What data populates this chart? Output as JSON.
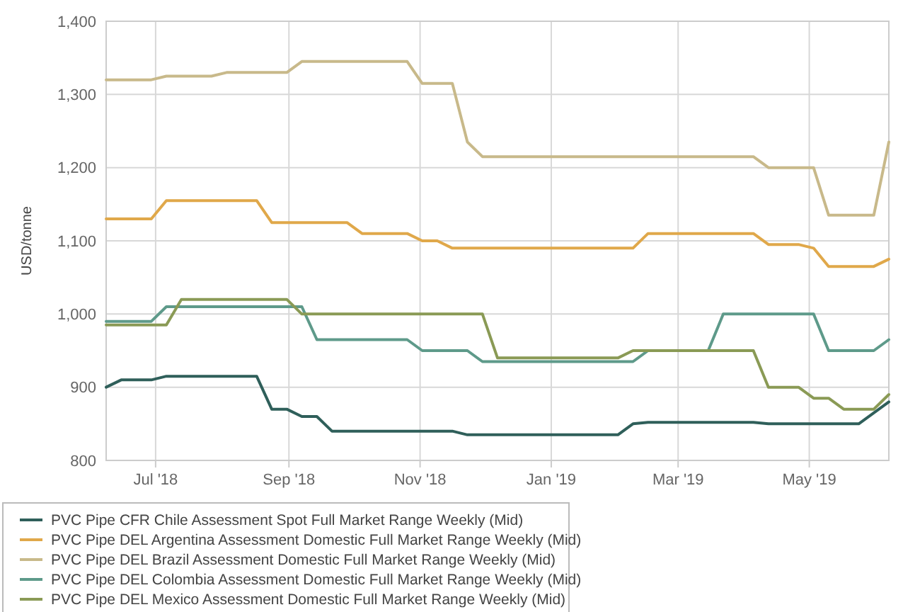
{
  "chart_data": {
    "type": "line",
    "ylabel": "USD/tonne",
    "xlim": [
      "2018-06-08",
      "2019-06-07"
    ],
    "xticks": [
      {
        "value": "2018-07-01",
        "label": "Jul '18"
      },
      {
        "value": "2018-09-01",
        "label": "Sep '18"
      },
      {
        "value": "2018-11-01",
        "label": "Nov '18"
      },
      {
        "value": "2019-01-01",
        "label": "Jan '19"
      },
      {
        "value": "2019-03-01",
        "label": "Mar '19"
      },
      {
        "value": "2019-05-01",
        "label": "May '19"
      }
    ],
    "ylim": [
      800,
      1400
    ],
    "yticks": [
      800,
      900,
      {
        "value": 1000,
        "label": "1,000"
      },
      {
        "value": 1100,
        "label": "1,100"
      },
      {
        "value": 1200,
        "label": "1,200"
      },
      {
        "value": 1300,
        "label": "1,300"
      },
      {
        "value": 1400,
        "label": "1,400"
      }
    ],
    "grid": true,
    "legend": "bottom",
    "marker": "none",
    "line_style": "solid",
    "series": [
      {
        "name": "PVC Pipe CFR Chile Assessment Spot Full Market Range Weekly (Mid)",
        "color": "#2f5f5a",
        "x": [
          "2018-06-08",
          "2018-06-15",
          "2018-06-29",
          "2018-07-06",
          "2018-08-17",
          "2018-08-24",
          "2018-08-31",
          "2018-09-07",
          "2018-09-14",
          "2018-09-21",
          "2018-11-16",
          "2018-11-23",
          "2019-02-01",
          "2019-02-08",
          "2019-02-15",
          "2019-04-05",
          "2019-04-12",
          "2019-05-24",
          "2019-06-07"
        ],
        "values": [
          900,
          910,
          910,
          915,
          915,
          870,
          870,
          860,
          860,
          840,
          840,
          835,
          835,
          850,
          852,
          852,
          850,
          850,
          880
        ]
      },
      {
        "name": "PVC Pipe DEL Argentina Assessment Domestic Full Market Range Weekly (Mid)",
        "color": "#e0a84a",
        "x": [
          "2018-06-08",
          "2018-06-29",
          "2018-07-06",
          "2018-08-17",
          "2018-08-24",
          "2018-09-28",
          "2018-10-05",
          "2018-10-26",
          "2018-11-02",
          "2018-11-09",
          "2018-11-16",
          "2019-02-08",
          "2019-02-15",
          "2019-04-05",
          "2019-04-12",
          "2019-04-26",
          "2019-05-03",
          "2019-05-10",
          "2019-05-31",
          "2019-06-07"
        ],
        "values": [
          1130,
          1130,
          1155,
          1155,
          1125,
          1125,
          1110,
          1110,
          1100,
          1100,
          1090,
          1090,
          1110,
          1110,
          1095,
          1095,
          1090,
          1065,
          1065,
          1075
        ]
      },
      {
        "name": "PVC Pipe DEL Brazil Assessment Domestic Full Market Range Weekly (Mid)",
        "color": "#c8b98a",
        "x": [
          "2018-06-08",
          "2018-06-29",
          "2018-07-06",
          "2018-07-27",
          "2018-08-03",
          "2018-08-31",
          "2018-09-07",
          "2018-10-26",
          "2018-11-02",
          "2018-11-16",
          "2018-11-23",
          "2018-11-30",
          "2019-04-05",
          "2019-04-12",
          "2019-05-03",
          "2019-05-10",
          "2019-05-31",
          "2019-06-07"
        ],
        "values": [
          1320,
          1320,
          1325,
          1325,
          1330,
          1330,
          1345,
          1345,
          1315,
          1315,
          1235,
          1215,
          1215,
          1200,
          1200,
          1135,
          1135,
          1235
        ]
      },
      {
        "name": "PVC Pipe DEL Colombia Assessment Domestic Full Market Range Weekly (Mid)",
        "color": "#5e9a8a",
        "x": [
          "2018-06-08",
          "2018-06-29",
          "2018-07-06",
          "2018-09-07",
          "2018-09-14",
          "2018-10-26",
          "2018-11-02",
          "2018-11-23",
          "2018-11-30",
          "2019-02-08",
          "2019-02-15",
          "2019-03-15",
          "2019-03-22",
          "2019-05-03",
          "2019-05-10",
          "2019-05-31",
          "2019-06-07"
        ],
        "values": [
          990,
          990,
          1010,
          1010,
          965,
          965,
          950,
          950,
          935,
          935,
          950,
          950,
          1000,
          1000,
          950,
          950,
          965
        ]
      },
      {
        "name": "PVC Pipe DEL Mexico Assessment Domestic Full Market Range Weekly (Mid)",
        "color": "#8a9a55",
        "x": [
          "2018-06-08",
          "2018-07-06",
          "2018-07-13",
          "2018-08-31",
          "2018-09-07",
          "2018-11-30",
          "2018-12-07",
          "2019-02-01",
          "2019-02-08",
          "2019-04-05",
          "2019-04-12",
          "2019-04-26",
          "2019-05-03",
          "2019-05-10",
          "2019-05-17",
          "2019-05-31",
          "2019-06-07"
        ],
        "values": [
          985,
          985,
          1020,
          1020,
          1000,
          1000,
          940,
          940,
          950,
          950,
          900,
          900,
          885,
          885,
          870,
          870,
          890
        ]
      }
    ]
  }
}
